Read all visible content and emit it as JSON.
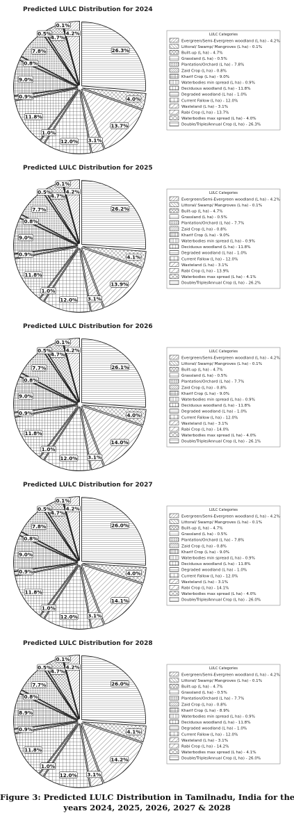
{
  "caption": {
    "line1": "Figure 3: Predicted LULC Distribution in Tamilnadu, India for the",
    "line2": "years 2024, 2025, 2026, 2027 & 2028"
  },
  "legend_title": "LULC Categories",
  "colors": {
    "line": "#222222",
    "label_box": "#ffffff",
    "background": "#ffffff"
  },
  "chart_data": [
    {
      "type": "pie",
      "title": "Predicted LULC Distribution for 2024",
      "categories": [
        "Evergreen/Semi-Evergreen woodland (L ha)",
        "Littoral/ Swamp/ Mangroves (L ha)",
        "Built-up (L ha)",
        "Grassland (L ha)",
        "Plantation/Orchard (L ha)",
        "Zaid Crop (L ha)",
        "Kharif Crop (L ha)",
        "Waterbodies min spread (L ha)",
        "Deciduous woodland (L ha)",
        "Degraded woodland (L ha)",
        "Current Fallow (L ha)",
        "Wasteland (L ha)",
        "Rabi Crop (L ha)",
        "Waterbodies max spread (L ha)",
        "Double/Triple/Annual Crop (L ha)"
      ],
      "values": [
        4.2,
        0.1,
        4.7,
        0.5,
        7.8,
        0.8,
        9.0,
        0.9,
        11.8,
        1.0,
        12.0,
        3.1,
        13.7,
        4.0,
        26.3
      ],
      "legend_entries": [
        "Evergreen/Semi-Evergreen woodland (L ha) - 4.2%",
        "Littoral/ Swamp/ Mangroves (L ha) - 0.1%",
        "Built-up (L ha) - 4.7%",
        "Grassland (L ha) - 0.5%",
        "Plantation/Orchard (L ha) - 7.8%",
        "Zaid Crop (L ha) - 0.8%",
        "Kharif Crop (L ha) - 9.0%",
        "Waterbodies min spread (L ha) - 0.9%",
        "Deciduous woodland (L ha) - 11.8%",
        "Degraded woodland (L ha) - 1.0%",
        "Current Fallow (L ha) - 12.0%",
        "Wasteland (L ha) - 3.1%",
        "Rabi Crop (L ha) - 13.7%",
        "Waterbodies max spread (L ha) - 4.0%",
        "Double/Triple/Annual Crop (L ha) - 26.3%"
      ],
      "slice_labels": [
        "4.2%",
        "0.1%",
        "4.7%",
        "0.5%",
        "7.8%",
        "0.8%",
        "9.0%",
        "0.9%",
        "11.8%",
        "1.0%",
        "12.0%",
        "3.1%",
        "13.7%",
        "4.0%",
        "26.3%"
      ],
      "legend_placement": "right"
    },
    {
      "type": "pie",
      "title": "Predicted LULC Distribution for 2025",
      "categories": [
        "Evergreen/Semi-Evergreen woodland (L ha)",
        "Littoral/ Swamp/ Mangroves (L ha)",
        "Built-up (L ha)",
        "Grassland (L ha)",
        "Plantation/Orchard (L ha)",
        "Zaid Crop (L ha)",
        "Kharif Crop (L ha)",
        "Waterbodies min spread (L ha)",
        "Deciduous woodland (L ha)",
        "Degraded woodland (L ha)",
        "Current Fallow (L ha)",
        "Wasteland (L ha)",
        "Rabi Crop (L ha)",
        "Waterbodies max spread (L ha)",
        "Double/Triple/Annual Crop (L ha)"
      ],
      "values": [
        4.2,
        0.1,
        4.7,
        0.5,
        7.7,
        0.8,
        9.0,
        0.9,
        11.8,
        1.0,
        12.0,
        3.1,
        13.9,
        4.1,
        26.2
      ],
      "legend_entries": [
        "Evergreen/Semi-Evergreen woodland (L ha) - 4.2%",
        "Littoral/ Swamp/ Mangroves (L ha) - 0.1%",
        "Built-up (L ha) - 4.7%",
        "Grassland (L ha) - 0.5%",
        "Plantation/Orchard (L ha) - 7.7%",
        "Zaid Crop (L ha) - 0.8%",
        "Kharif Crop (L ha) - 9.0%",
        "Waterbodies min spread (L ha) - 0.9%",
        "Deciduous woodland (L ha) - 11.8%",
        "Degraded woodland (L ha) - 1.0%",
        "Current Fallow (L ha) - 12.0%",
        "Wasteland (L ha) - 3.1%",
        "Rabi Crop (L ha) - 13.9%",
        "Waterbodies max spread (L ha) - 4.1%",
        "Double/Triple/Annual Crop (L ha) - 26.2%"
      ],
      "slice_labels": [
        "4.2%",
        "0.1%",
        "4.7%",
        "0.5%",
        "7.7%",
        "0.8%",
        "9.0%",
        "0.9%",
        "11.8%",
        "1.0%",
        "12.0%",
        "3.1%",
        "13.9%",
        "4.1%",
        "26.2%"
      ],
      "legend_placement": "right"
    },
    {
      "type": "pie",
      "title": "Predicted LULC Distribution for 2026",
      "categories": [
        "Evergreen/Semi-Evergreen woodland (L ha)",
        "Littoral/ Swamp/ Mangroves (L ha)",
        "Built-up (L ha)",
        "Grassland (L ha)",
        "Plantation/Orchard (L ha)",
        "Zaid Crop (L ha)",
        "Kharif Crop (L ha)",
        "Waterbodies min spread (L ha)",
        "Deciduous woodland (L ha)",
        "Degraded woodland (L ha)",
        "Current Fallow (L ha)",
        "Wasteland (L ha)",
        "Rabi Crop (L ha)",
        "Waterbodies max spread (L ha)",
        "Double/Triple/Annual Crop (L ha)"
      ],
      "values": [
        4.2,
        0.1,
        4.7,
        0.5,
        7.7,
        0.8,
        9.0,
        0.9,
        11.8,
        1.0,
        12.0,
        3.1,
        14.0,
        4.0,
        26.1
      ],
      "legend_entries": [
        "Evergreen/Semi-Evergreen woodland (L ha) - 4.2%",
        "Littoral/ Swamp/ Mangroves (L ha) - 0.1%",
        "Built-up (L ha) - 4.7%",
        "Grassland (L ha) - 0.5%",
        "Plantation/Orchard (L ha) - 7.7%",
        "Zaid Crop (L ha) - 0.8%",
        "Kharif Crop (L ha) - 9.0%",
        "Waterbodies min spread (L ha) - 0.9%",
        "Deciduous woodland (L ha) - 11.8%",
        "Degraded woodland (L ha) - 1.0%",
        "Current Fallow (L ha) - 12.0%",
        "Wasteland (L ha) - 3.1%",
        "Rabi Crop (L ha) - 14.0%",
        "Waterbodies max spread (L ha) - 4.0%",
        "Double/Triple/Annual Crop (L ha) - 26.1%"
      ],
      "slice_labels": [
        "4.2%",
        "0.1%",
        "4.7%",
        "0.5%",
        "7.7%",
        "0.8%",
        "9.0%",
        "0.9%",
        "11.8%",
        "1.0%",
        "12.0%",
        "3.1%",
        "14.0%",
        "4.0%",
        "26.1%"
      ],
      "legend_placement": "right"
    },
    {
      "type": "pie",
      "title": "Predicted LULC Distribution for 2027",
      "categories": [
        "Evergreen/Semi-Evergreen woodland (L ha)",
        "Littoral/ Swamp/ Mangroves (L ha)",
        "Built-up (L ha)",
        "Grassland (L ha)",
        "Plantation/Orchard (L ha)",
        "Zaid Crop (L ha)",
        "Kharif Crop (L ha)",
        "Waterbodies min spread (L ha)",
        "Deciduous woodland (L ha)",
        "Degraded woodland (L ha)",
        "Current Fallow (L ha)",
        "Wasteland (L ha)",
        "Rabi Crop (L ha)",
        "Waterbodies max spread (L ha)",
        "Double/Triple/Annual Crop (L ha)"
      ],
      "values": [
        4.2,
        0.1,
        4.7,
        0.5,
        7.8,
        0.8,
        9.0,
        0.9,
        11.8,
        1.0,
        12.0,
        3.1,
        14.1,
        4.0,
        26.0
      ],
      "legend_entries": [
        "Evergreen/Semi-Evergreen woodland (L ha) - 4.2%",
        "Littoral/ Swamp/ Mangroves (L ha) - 0.1%",
        "Built-up (L ha) - 4.7%",
        "Grassland (L ha) - 0.5%",
        "Plantation/Orchard (L ha) - 7.8%",
        "Zaid Crop (L ha) - 0.8%",
        "Kharif Crop (L ha) - 9.0%",
        "Waterbodies min spread (L ha) - 0.9%",
        "Deciduous woodland (L ha) - 11.8%",
        "Degraded woodland (L ha) - 1.0%",
        "Current Fallow (L ha) - 12.0%",
        "Wasteland (L ha) - 3.1%",
        "Rabi Crop (L ha) - 14.1%",
        "Waterbodies max spread (L ha) - 4.0%",
        "Double/Triple/Annual Crop (L ha) - 26.0%"
      ],
      "slice_labels": [
        "4.2%",
        "0.1%",
        "4.7%",
        "0.5%",
        "7.8%",
        "0.8%",
        "9.0%",
        "0.9%",
        "11.8%",
        "1.0%",
        "12.0%",
        "3.1%",
        "14.1%",
        "4.0%",
        "26.0%"
      ],
      "legend_placement": "right"
    },
    {
      "type": "pie",
      "title": "Predicted LULC Distribution for 2028",
      "categories": [
        "Evergreen/Semi-Evergreen woodland (L ha)",
        "Littoral/ Swamp/ Mangroves (L ha)",
        "Built-up (L ha)",
        "Grassland (L ha)",
        "Plantation/Orchard (L ha)",
        "Zaid Crop (L ha)",
        "Kharif Crop (L ha)",
        "Waterbodies min spread (L ha)",
        "Deciduous woodland (L ha)",
        "Degraded woodland (L ha)",
        "Current Fallow (L ha)",
        "Wasteland (L ha)",
        "Rabi Crop (L ha)",
        "Waterbodies max spread (L ha)",
        "Double/Triple/Annual Crop (L ha)"
      ],
      "values": [
        4.2,
        0.1,
        4.7,
        0.5,
        7.7,
        0.8,
        8.9,
        0.9,
        11.8,
        1.0,
        12.0,
        3.1,
        14.2,
        4.1,
        26.0
      ],
      "legend_entries": [
        "Evergreen/Semi-Evergreen woodland (L ha) - 4.2%",
        "Littoral/ Swamp/ Mangroves (L ha) - 0.1%",
        "Built-up (L ha) - 4.7%",
        "Grassland (L ha) - 0.5%",
        "Plantation/Orchard (L ha) - 7.7%",
        "Zaid Crop (L ha) - 0.8%",
        "Kharif Crop (L ha) - 8.9%",
        "Waterbodies min spread (L ha) - 0.9%",
        "Deciduous woodland (L ha) - 11.8%",
        "Degraded woodland (L ha) - 1.0%",
        "Current Fallow (L ha) - 12.0%",
        "Wasteland (L ha) - 3.1%",
        "Rabi Crop (L ha) - 14.2%",
        "Waterbodies max spread (L ha) - 4.1%",
        "Double/Triple/Annual Crop (L ha) - 26.0%"
      ],
      "slice_labels": [
        "4.2%",
        "0.1%",
        "4.7%",
        "0.5%",
        "7.7%",
        "0.8%",
        "8.9%",
        "0.9%",
        "11.8%",
        "1.0%",
        "12.0%",
        "3.1%",
        "14.2%",
        "4.1%",
        "26.0%"
      ],
      "legend_placement": "right"
    }
  ]
}
